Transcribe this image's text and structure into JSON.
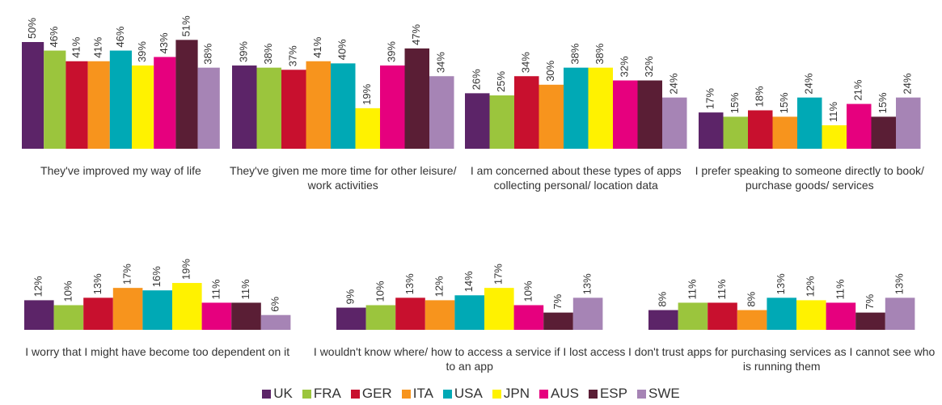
{
  "chart_data": {
    "type": "bar",
    "categories": [
      "They've improved my way of life",
      "They've given me more time for other leisure/ work activities",
      "I am concerned about these types of apps collecting personal/ location data",
      "I prefer speaking to someone directly to book/ purchase goods/ services",
      "I worry that I might have become too dependent on it",
      "I wouldn't know where/ how to access a service if I lost access to an app",
      "I don't trust apps for purchasing services as I cannot see who is running them"
    ],
    "series": [
      {
        "name": "UK",
        "color": "#5c2468",
        "values": [
          50,
          39,
          26,
          17,
          12,
          9,
          8
        ],
        "value_labels": [
          "50%",
          "39%",
          "26%",
          "17%",
          "12%",
          "9%",
          "8%"
        ]
      },
      {
        "name": "FRA",
        "color": "#9bc53d",
        "values": [
          46,
          38,
          25,
          15,
          10,
          10,
          11
        ],
        "value_labels": [
          "46%",
          "38%",
          "25%",
          "15%",
          "10%",
          "10%",
          "11%"
        ]
      },
      {
        "name": "GER",
        "color": "#c8102e",
        "values": [
          41,
          37,
          34,
          18,
          13,
          13,
          11
        ],
        "value_labels": [
          "41%",
          "37%",
          "34%",
          "18%",
          "13%",
          "13%",
          "11%"
        ]
      },
      {
        "name": "ITA",
        "color": "#f7941d",
        "values": [
          41,
          41,
          30,
          15,
          17,
          12,
          8
        ],
        "value_labels": [
          "41%",
          "41%",
          "30%",
          "15%",
          "17%",
          "12%",
          "8%"
        ]
      },
      {
        "name": "USA",
        "color": "#00a9b5",
        "values": [
          46,
          40,
          38,
          24,
          16,
          14,
          13
        ],
        "value_labels": [
          "46%",
          "40%",
          "38%",
          "24%",
          "16%",
          "14%",
          "13%"
        ]
      },
      {
        "name": "JPN",
        "color": "#fff200",
        "values": [
          39,
          19,
          38,
          11,
          19,
          17,
          12
        ],
        "value_labels": [
          "39%",
          "19%",
          "38%",
          "11%",
          "19%",
          "17%",
          "12%"
        ]
      },
      {
        "name": "AUS",
        "color": "#e6007e",
        "values": [
          43,
          39,
          32,
          21,
          11,
          10,
          11
        ],
        "value_labels": [
          "43%",
          "39%",
          "32%",
          "21%",
          "11%",
          "10%",
          "11%"
        ]
      },
      {
        "name": "ESP",
        "color": "#5a1e35",
        "values": [
          51,
          47,
          32,
          15,
          11,
          7,
          7
        ],
        "value_labels": [
          "51%",
          "47%",
          "32%",
          "15%",
          "11%",
          "7%",
          "7%"
        ]
      },
      {
        "name": "SWE",
        "color": "#a684b5",
        "values": [
          38,
          34,
          24,
          24,
          6,
          13,
          13
        ],
        "value_labels": [
          "38%",
          "34%",
          "24%",
          "24%",
          "6%",
          "13%",
          "13%"
        ]
      }
    ]
  }
}
